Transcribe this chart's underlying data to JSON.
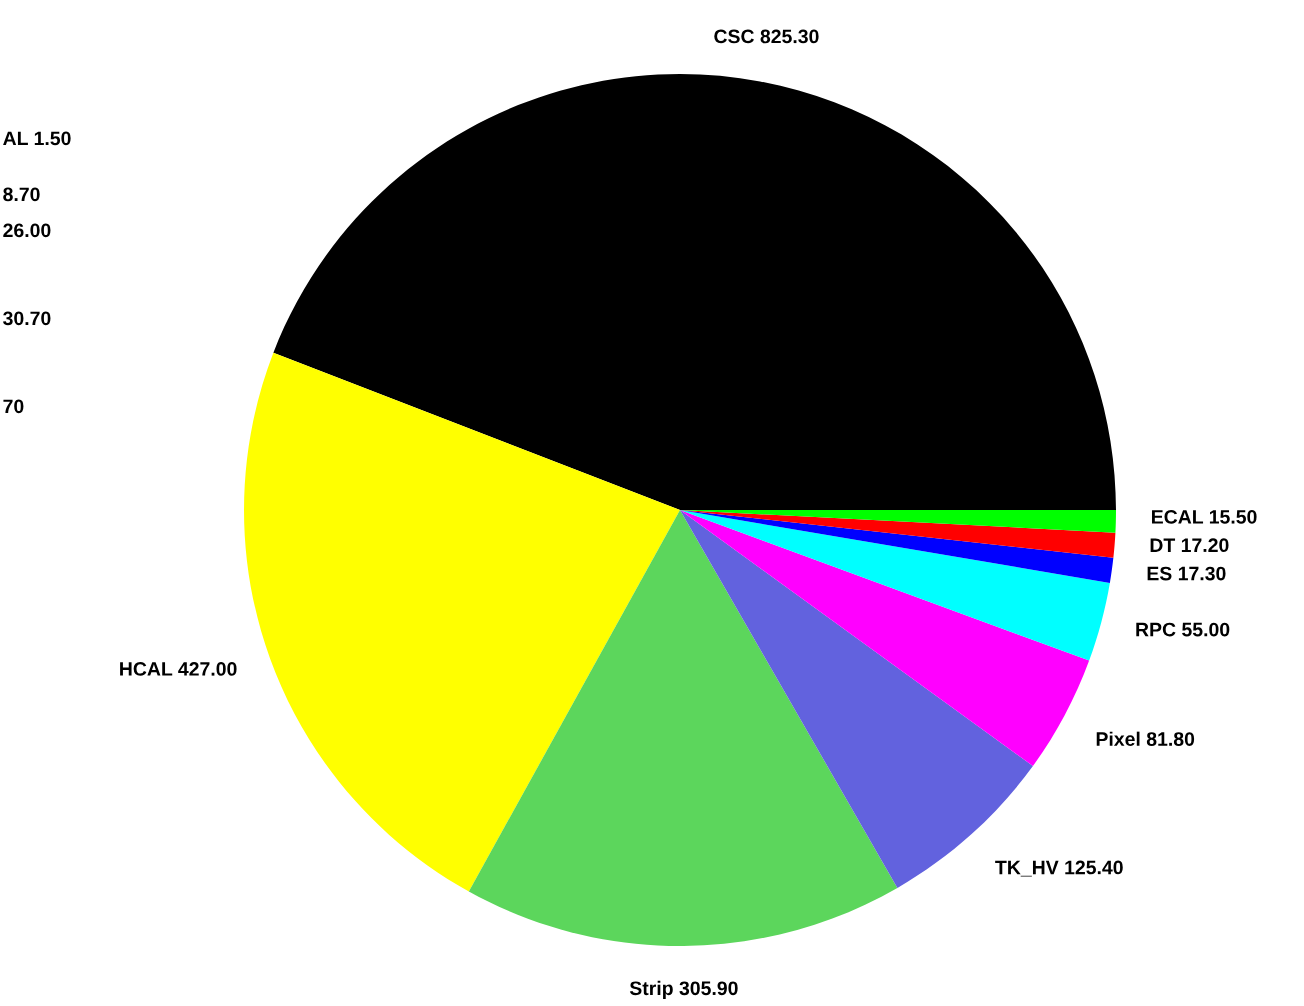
{
  "chart_data": {
    "type": "pie",
    "categories": [
      "CSC",
      "HCAL",
      "Strip",
      "TK_HV",
      "Pixel",
      "RPC",
      "ES",
      "DT",
      "ECAL"
    ],
    "values": [
      825.3,
      427.0,
      305.9,
      125.4,
      81.8,
      55.0,
      17.3,
      17.2,
      15.5
    ],
    "value_labels": [
      "825.30",
      "427.00",
      "305.90",
      "125.40",
      "81.80",
      "55.00",
      "17.30",
      "17.20",
      "15.50"
    ],
    "colors": [
      "#000000",
      "#ffff00",
      "#5cd65c",
      "#6262de",
      "#ff00ff",
      "#00ffff",
      "#0000ff",
      "#ff0000",
      "#00ff00"
    ],
    "annotations": [
      "AL 1.50",
      "8.70",
      "26.00",
      "30.70",
      "70"
    ],
    "legend": false
  }
}
